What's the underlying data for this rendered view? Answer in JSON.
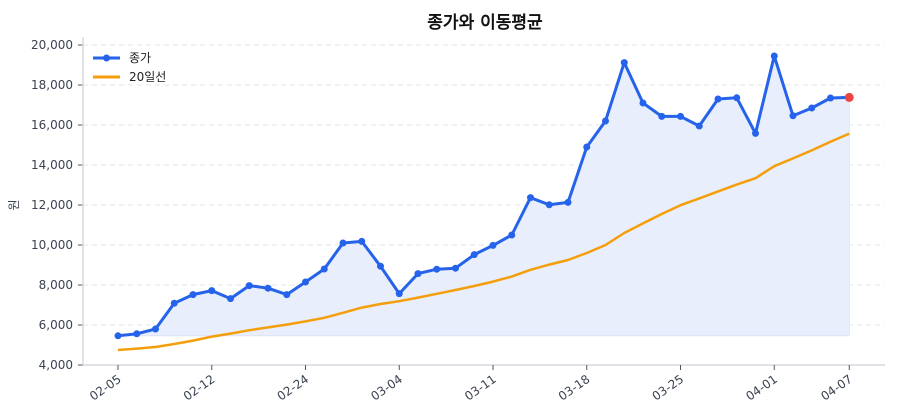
{
  "chart_data": {
    "type": "line",
    "title": "종가와 이동평균",
    "xlabel": "",
    "ylabel": "원",
    "ylim": [
      4000,
      20000
    ],
    "y_ticks": [
      "4,000",
      "6,000",
      "8,000",
      "10,000",
      "12,000",
      "14,000",
      "16,000",
      "18,000",
      "20,000"
    ],
    "x_ticks": [
      {
        "index": 0,
        "label": "02-05"
      },
      {
        "index": 5,
        "label": "02-12"
      },
      {
        "index": 10,
        "label": "02-24"
      },
      {
        "index": 15,
        "label": "03-04"
      },
      {
        "index": 20,
        "label": "03-11"
      },
      {
        "index": 25,
        "label": "03-18"
      },
      {
        "index": 30,
        "label": "03-25"
      },
      {
        "index": 35,
        "label": "04-01"
      },
      {
        "index": 39,
        "label": "04-07"
      }
    ],
    "grid": "horizontal dashed",
    "legend_position": "top-left",
    "series": [
      {
        "name": "종가",
        "color": "#2563eb",
        "markers": true,
        "fill": "#e8eefb",
        "last_point_color": "#ef4444",
        "values": [
          5460,
          5560,
          5800,
          7090,
          7520,
          7720,
          7320,
          7970,
          7840,
          7520,
          8150,
          8800,
          10100,
          10180,
          8940,
          7570,
          8570,
          8790,
          8840,
          9520,
          9980,
          10500,
          12370,
          12010,
          12130,
          14900,
          16200,
          19120,
          17100,
          16430,
          16430,
          15950,
          17300,
          17360,
          15580,
          19450,
          16460,
          16850,
          17350,
          17380
        ]
      },
      {
        "name": "20일선",
        "color": "#f59e0b",
        "markers": false,
        "values": [
          4750,
          4820,
          4900,
          5050,
          5220,
          5420,
          5570,
          5740,
          5880,
          6020,
          6180,
          6360,
          6610,
          6870,
          7050,
          7190,
          7370,
          7560,
          7750,
          7950,
          8170,
          8420,
          8760,
          9020,
          9250,
          9600,
          10000,
          10600,
          11080,
          11550,
          11990,
          12330,
          12680,
          13020,
          13340,
          13940,
          14330,
          14730,
          15160,
          15570
        ]
      }
    ]
  }
}
